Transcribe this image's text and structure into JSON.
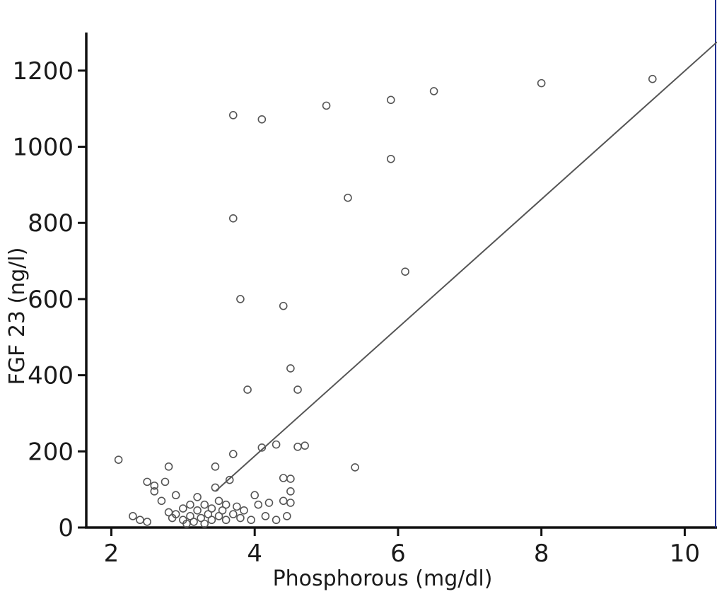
{
  "chart_data": {
    "type": "scatter",
    "xlabel": "Phosphorous (mg/dl)",
    "ylabel": "FGF 23 (ng/l)",
    "xlim": [
      1.65,
      10.45
    ],
    "ylim": [
      0,
      1300
    ],
    "xticks": [
      2,
      4,
      6,
      8,
      10
    ],
    "yticks": [
      0,
      200,
      400,
      600,
      800,
      1000,
      1200
    ],
    "grid": false,
    "trendline": {
      "x": [
        3.45,
        10.45
      ],
      "y": [
        95,
        1275
      ]
    },
    "points": [
      {
        "x": 2.1,
        "y": 178
      },
      {
        "x": 2.3,
        "y": 30
      },
      {
        "x": 2.4,
        "y": 20
      },
      {
        "x": 2.5,
        "y": 15
      },
      {
        "x": 2.5,
        "y": 120
      },
      {
        "x": 2.6,
        "y": 110
      },
      {
        "x": 2.6,
        "y": 95
      },
      {
        "x": 2.7,
        "y": 70
      },
      {
        "x": 2.75,
        "y": 120
      },
      {
        "x": 2.8,
        "y": 160
      },
      {
        "x": 2.8,
        "y": 40
      },
      {
        "x": 2.85,
        "y": 25
      },
      {
        "x": 2.9,
        "y": 35
      },
      {
        "x": 2.9,
        "y": 85
      },
      {
        "x": 3.0,
        "y": 20
      },
      {
        "x": 3.0,
        "y": 50
      },
      {
        "x": 3.05,
        "y": 10
      },
      {
        "x": 3.1,
        "y": 30
      },
      {
        "x": 3.1,
        "y": 60
      },
      {
        "x": 3.15,
        "y": 15
      },
      {
        "x": 3.2,
        "y": 45
      },
      {
        "x": 3.2,
        "y": 80
      },
      {
        "x": 3.25,
        "y": 25
      },
      {
        "x": 3.3,
        "y": 60
      },
      {
        "x": 3.3,
        "y": 10
      },
      {
        "x": 3.35,
        "y": 35
      },
      {
        "x": 3.4,
        "y": 50
      },
      {
        "x": 3.4,
        "y": 20
      },
      {
        "x": 3.45,
        "y": 160
      },
      {
        "x": 3.45,
        "y": 105
      },
      {
        "x": 3.5,
        "y": 30
      },
      {
        "x": 3.5,
        "y": 70
      },
      {
        "x": 3.55,
        "y": 45
      },
      {
        "x": 3.6,
        "y": 20
      },
      {
        "x": 3.6,
        "y": 60
      },
      {
        "x": 3.65,
        "y": 125
      },
      {
        "x": 3.7,
        "y": 35
      },
      {
        "x": 3.7,
        "y": 1083
      },
      {
        "x": 3.7,
        "y": 812
      },
      {
        "x": 3.7,
        "y": 193
      },
      {
        "x": 3.75,
        "y": 55
      },
      {
        "x": 3.8,
        "y": 600
      },
      {
        "x": 3.8,
        "y": 25
      },
      {
        "x": 3.85,
        "y": 45
      },
      {
        "x": 3.9,
        "y": 362
      },
      {
        "x": 3.95,
        "y": 20
      },
      {
        "x": 4.0,
        "y": 85
      },
      {
        "x": 4.05,
        "y": 60
      },
      {
        "x": 4.1,
        "y": 210
      },
      {
        "x": 4.1,
        "y": 1072
      },
      {
        "x": 4.15,
        "y": 30
      },
      {
        "x": 4.2,
        "y": 65
      },
      {
        "x": 4.3,
        "y": 218
      },
      {
        "x": 4.3,
        "y": 20
      },
      {
        "x": 4.4,
        "y": 582
      },
      {
        "x": 4.4,
        "y": 130
      },
      {
        "x": 4.4,
        "y": 70
      },
      {
        "x": 4.45,
        "y": 30
      },
      {
        "x": 4.5,
        "y": 418
      },
      {
        "x": 4.5,
        "y": 128
      },
      {
        "x": 4.5,
        "y": 95
      },
      {
        "x": 4.5,
        "y": 65
      },
      {
        "x": 4.6,
        "y": 362
      },
      {
        "x": 4.6,
        "y": 212
      },
      {
        "x": 4.7,
        "y": 215
      },
      {
        "x": 5.0,
        "y": 1108
      },
      {
        "x": 5.3,
        "y": 866
      },
      {
        "x": 5.4,
        "y": 158
      },
      {
        "x": 5.9,
        "y": 1123
      },
      {
        "x": 5.9,
        "y": 968
      },
      {
        "x": 6.1,
        "y": 672
      },
      {
        "x": 6.5,
        "y": 1146
      },
      {
        "x": 8.0,
        "y": 1167
      },
      {
        "x": 9.55,
        "y": 1178
      }
    ]
  }
}
